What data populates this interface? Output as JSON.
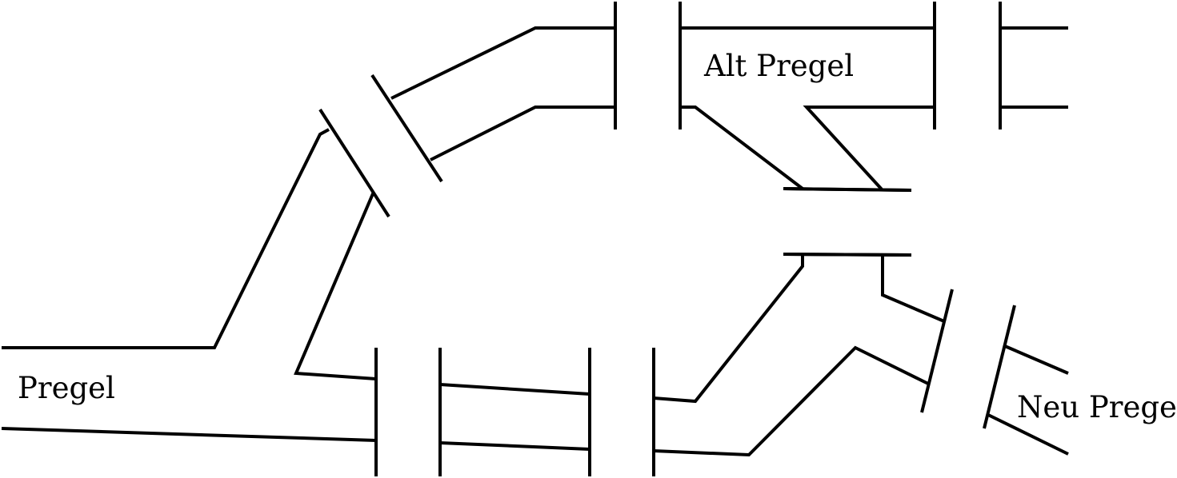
{
  "diagram": {
    "title": "",
    "line_color": "#000000",
    "text_color": "#000000",
    "background": "#ffffff",
    "labels": {
      "alt_pregel": "Alt Pregel",
      "pregel": "Pregel",
      "neu_pregel": "Neu Pregel"
    },
    "bridge_count": 7
  }
}
